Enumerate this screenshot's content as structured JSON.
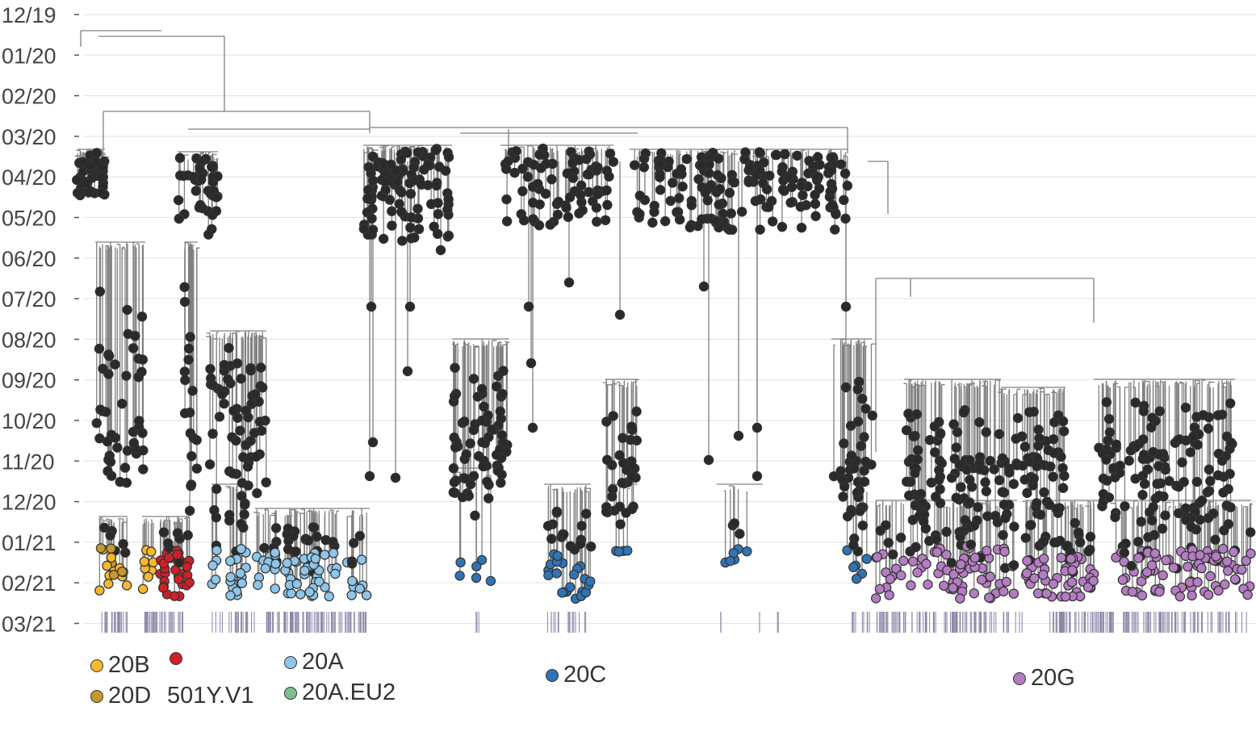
{
  "chart_data": {
    "type": "phylogenetic-tree",
    "y_axis": {
      "tick_labels": [
        "12/19",
        "01/20",
        "02/20",
        "03/20",
        "04/20",
        "05/20",
        "06/20",
        "07/20",
        "08/20",
        "09/20",
        "10/20",
        "11/20",
        "12/20",
        "01/21",
        "02/21",
        "03/21"
      ],
      "direction": "time increases downward",
      "grid": true
    },
    "node_colors": {
      "default": "#2a2a2a",
      "20B": "#f5b82e",
      "20D": "#c49a2c",
      "501Y.V1": "#d02027",
      "20A": "#8ec5e8",
      "20A.EU2": "#7fbf8f",
      "20C": "#2f74b5",
      "20G": "#b47cc2"
    },
    "clades": [
      {
        "name": "20B",
        "color": "#f5b82e"
      },
      {
        "name": "20D",
        "color": "#c49a2c"
      },
      {
        "name": "501Y.V1",
        "color": "#d02027"
      },
      {
        "name": "20A",
        "color": "#8ec5e8"
      },
      {
        "name": "20A.EU2",
        "color": "#7fbf8f"
      },
      {
        "name": "20C",
        "color": "#2f74b5"
      },
      {
        "name": "20G",
        "color": "#b47cc2"
      }
    ],
    "legend": {
      "label_20B": "20B",
      "label_20D": "20D",
      "label_501Y": "501Y.V1",
      "label_20A": "20A",
      "label_20AEU2": "20A.EU2",
      "label_20C": "20C",
      "label_20G": "20G"
    }
  }
}
